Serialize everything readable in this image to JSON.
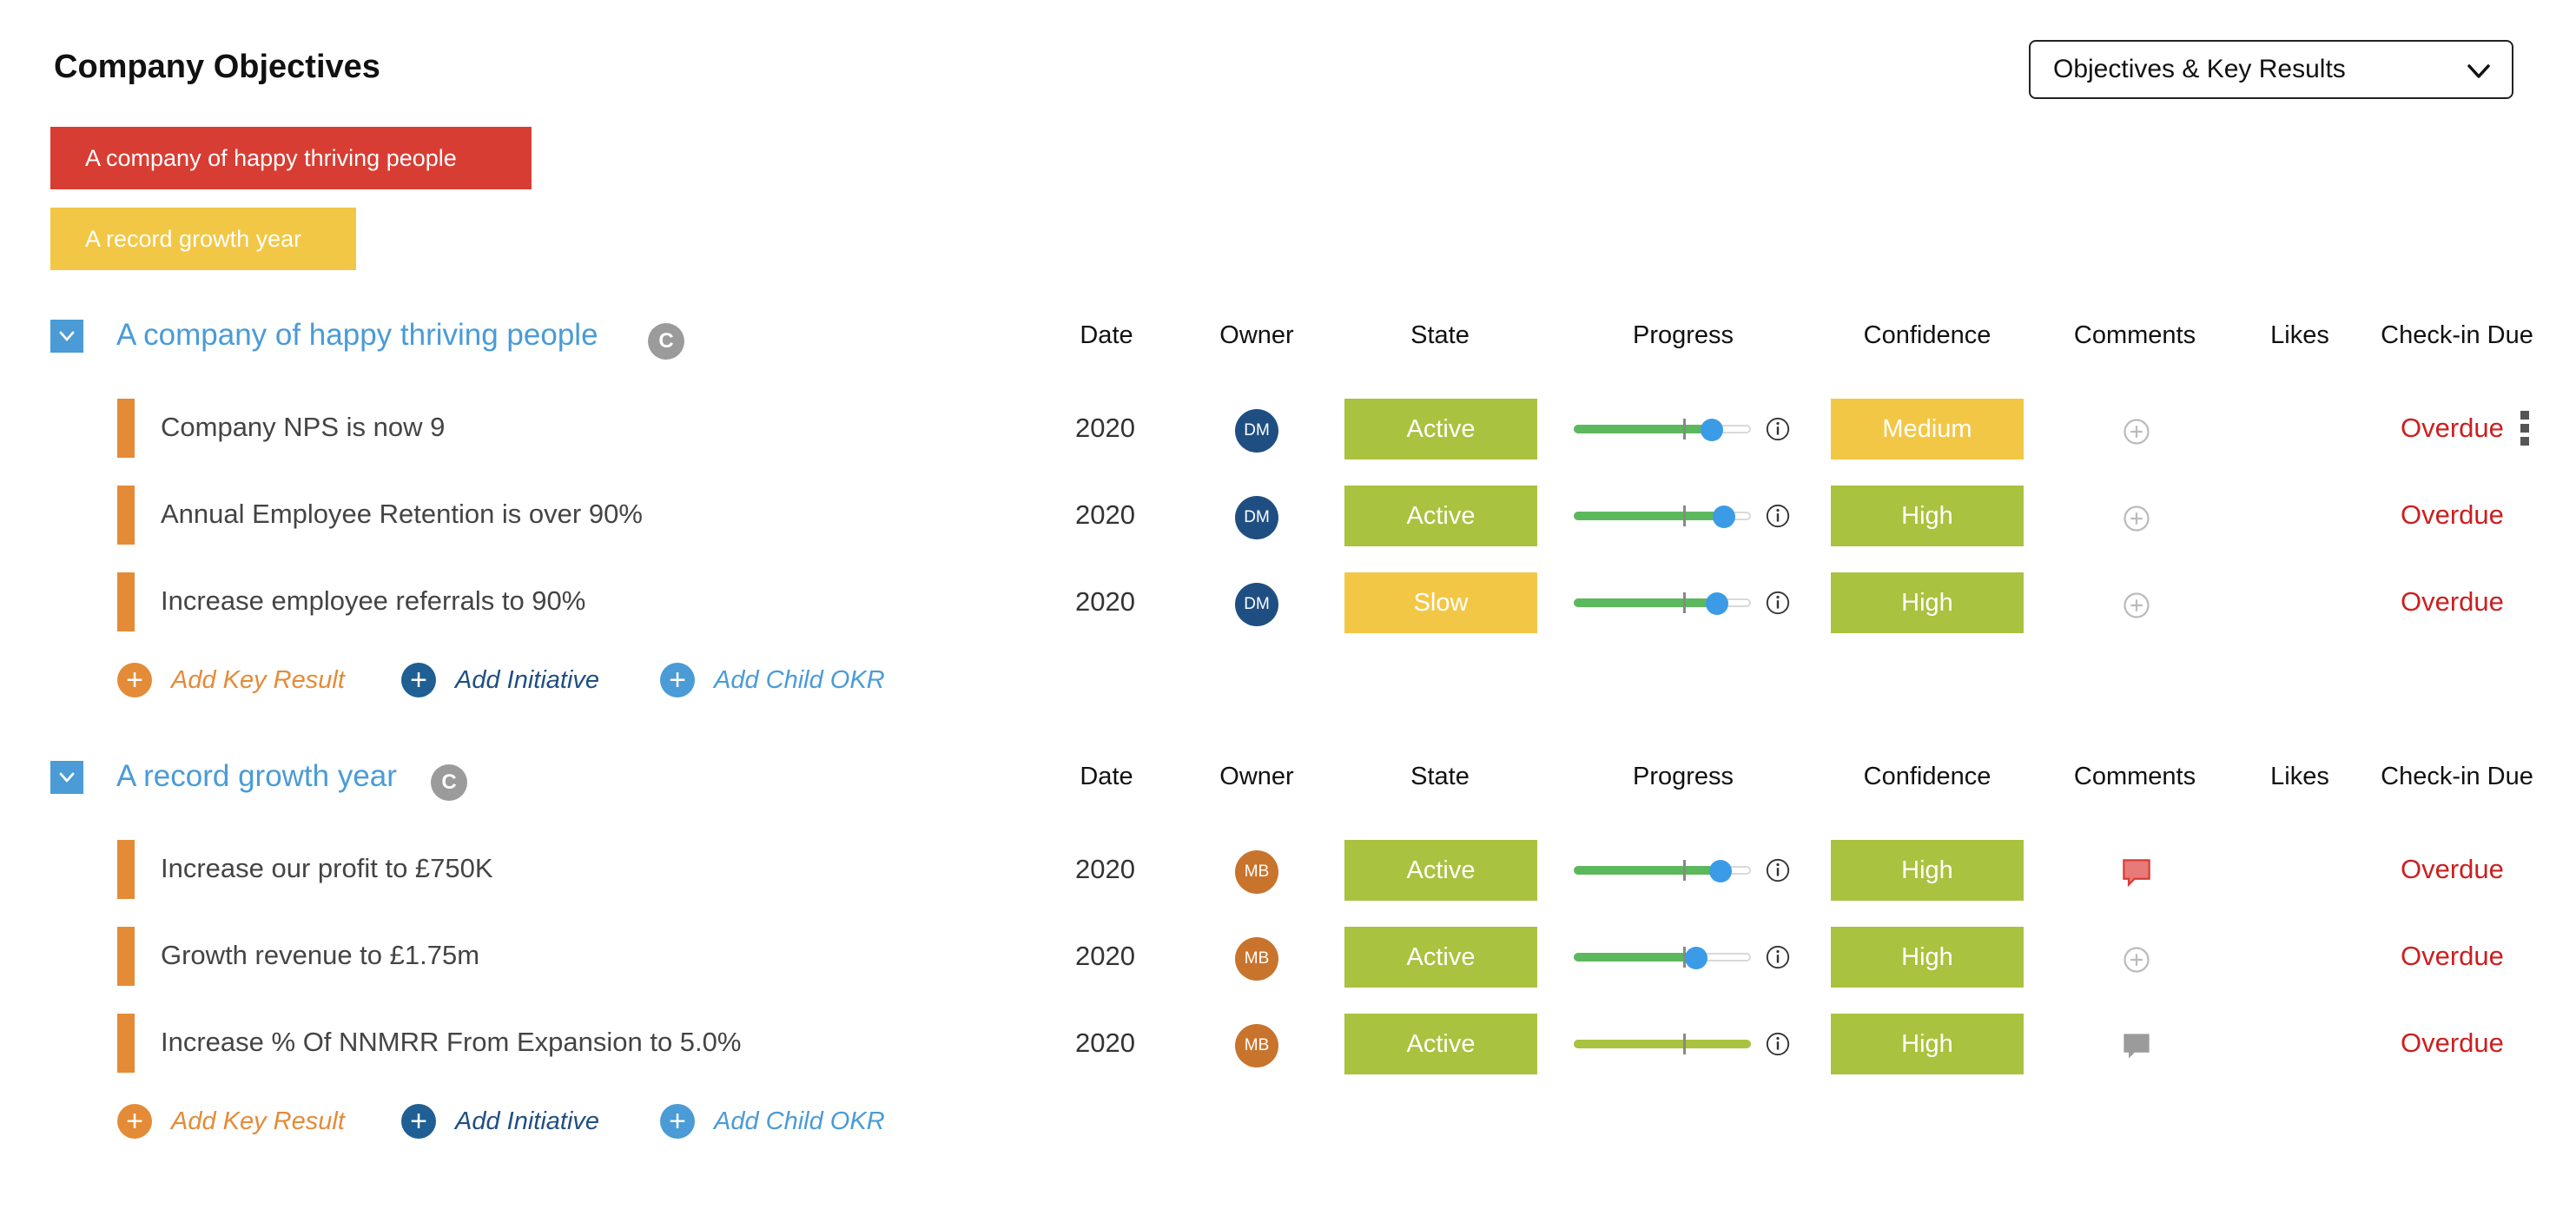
{
  "header": {
    "title": "Company Objectives",
    "view_select": "Objectives & Key Results"
  },
  "tags": [
    {
      "label": "A company of happy thriving people",
      "color": "#d83d33"
    },
    {
      "label": "A record growth year",
      "color": "#f3c746"
    }
  ],
  "columns": {
    "date": "Date",
    "owner": "Owner",
    "state": "State",
    "progress": "Progress",
    "confidence": "Confidence",
    "comments": "Comments",
    "likes": "Likes",
    "checkin": "Check-in Due"
  },
  "objectives": [
    {
      "title": "A company of happy thriving people",
      "badge": "C",
      "key_results": [
        {
          "title": "Company NPS is now 9",
          "date": "2020",
          "owner": "DM",
          "owner_color": "#1f4f82",
          "state": "Active",
          "state_color": "#a9c23f",
          "progress": 0.78,
          "progress_color": "#5cb85c",
          "confidence": "Medium",
          "confidence_color": "#f3c746",
          "comment_icon": "add-comment-icon",
          "checkin": "Overdue"
        },
        {
          "title": "Annual Employee Retention is over 90%",
          "date": "2020",
          "owner": "DM",
          "owner_color": "#1f4f82",
          "state": "Active",
          "state_color": "#a9c23f",
          "progress": 0.85,
          "progress_color": "#5cb85c",
          "confidence": "High",
          "confidence_color": "#a9c23f",
          "comment_icon": "add-comment-icon",
          "checkin": "Overdue"
        },
        {
          "title": "Increase employee referrals to 90%",
          "date": "2020",
          "owner": "DM",
          "owner_color": "#1f4f82",
          "state": "Slow",
          "state_color": "#f3c746",
          "progress": 0.81,
          "progress_color": "#5cb85c",
          "confidence": "High",
          "confidence_color": "#a9c23f",
          "comment_icon": "add-comment-icon",
          "checkin": "Overdue"
        }
      ],
      "actions": {
        "add_kr": "Add Key Result",
        "add_initiative": "Add Initiative",
        "add_child": "Add Child OKR"
      }
    },
    {
      "title": "A record growth year",
      "badge": "C",
      "key_results": [
        {
          "title": "Increase our profit to £750K",
          "date": "2020",
          "owner": "MB",
          "owner_color": "#c8742c",
          "state": "Active",
          "state_color": "#a9c23f",
          "progress": 0.83,
          "progress_color": "#5cb85c",
          "confidence": "High",
          "confidence_color": "#a9c23f",
          "comment_icon": "comment-red-icon",
          "checkin": "Overdue"
        },
        {
          "title": "Growth revenue to £1.75m",
          "date": "2020",
          "owner": "MB",
          "owner_color": "#c8742c",
          "state": "Active",
          "state_color": "#a9c23f",
          "progress": 0.69,
          "progress_color": "#5cb85c",
          "confidence": "High",
          "confidence_color": "#a9c23f",
          "comment_icon": "add-comment-icon",
          "checkin": "Overdue"
        },
        {
          "title": "Increase % Of NNMRR From Expansion to 5.0%",
          "date": "2020",
          "owner": "MB",
          "owner_color": "#c8742c",
          "state": "Active",
          "state_color": "#a9c23f",
          "progress": 1.0,
          "progress_color": "#a9c23f",
          "confidence": "High",
          "confidence_color": "#a9c23f",
          "comment_icon": "comment-grey-icon",
          "checkin": "Overdue"
        }
      ],
      "actions": {
        "add_kr": "Add Key Result",
        "add_initiative": "Add Initiative",
        "add_child": "Add Child OKR"
      }
    }
  ]
}
